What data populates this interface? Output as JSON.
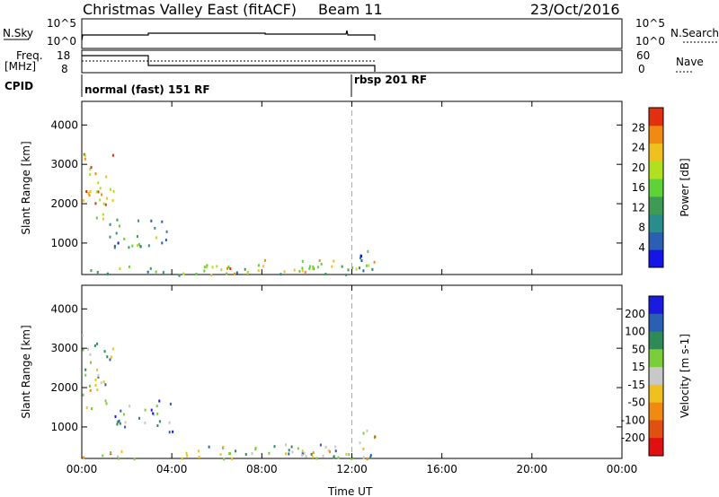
{
  "header": {
    "station": "Christmas Valley East (fitACF)",
    "beam": "Beam 11",
    "date": "23/Oct/2016"
  },
  "panels": {
    "nsky_label": "N.Sky",
    "nsearch_label": "N.Search",
    "nsky_ticks": [
      "10^5",
      "10^0"
    ],
    "freq_label_1": "Freq.",
    "freq_label_2": "[MHz]",
    "freq_ticks": [
      "18",
      "8"
    ],
    "nave_label": "Nave",
    "nave_ticks": [
      "60",
      "0"
    ],
    "cpid_label": "CPID",
    "cpid_segments": [
      {
        "label": "normal (fast) 151 RF",
        "start": 0.0
      },
      {
        "label": "rbsp 201 RF",
        "start": 12.0
      }
    ]
  },
  "chart_data": [
    {
      "type": "heatmap",
      "name": "power",
      "ylabel": "Slant Range [km]",
      "xlabel": "Time UT",
      "x_ticks": [
        "00:00",
        "04:00",
        "08:00",
        "12:00",
        "16:00",
        "20:00",
        "00:00"
      ],
      "xlim": [
        0,
        24
      ],
      "ylim": [
        200,
        4600
      ],
      "y_ticks": [
        1000,
        2000,
        3000,
        4000
      ],
      "colorbar": {
        "label": "Power [dB]",
        "ticks": [
          "4",
          "8",
          "12",
          "16",
          "20",
          "24",
          "28"
        ],
        "colors": [
          "#1515e8",
          "#2a5fb3",
          "#2a8c8c",
          "#3f9a55",
          "#5fd23a",
          "#b0e020",
          "#f0c020",
          "#f08a10",
          "#e03010"
        ]
      },
      "data_end_hour": 13.0,
      "regions": [
        {
          "t0": 0.0,
          "t1": 1.4,
          "r0": 1500,
          "r1": 3400,
          "level": 0.75
        },
        {
          "t0": 1.2,
          "t1": 4.0,
          "r0": 900,
          "r1": 1700,
          "level": 0.35
        },
        {
          "t0": 0.0,
          "t1": 13.0,
          "r0": 200,
          "r1": 450,
          "level": 0.45
        },
        {
          "t0": 5.5,
          "t1": 13.0,
          "r0": 250,
          "r1": 600,
          "level": 0.7
        },
        {
          "t0": 12.3,
          "t1": 13.0,
          "r0": 500,
          "r1": 1100,
          "level": 0.3
        }
      ]
    },
    {
      "type": "heatmap",
      "name": "velocity",
      "ylabel": "Slant Range [km]",
      "xlabel": "Time UT",
      "x_ticks": [
        "00:00",
        "04:00",
        "08:00",
        "12:00",
        "16:00",
        "20:00",
        "00:00"
      ],
      "xlim": [
        0,
        24
      ],
      "ylim": [
        200,
        4600
      ],
      "y_ticks": [
        1000,
        2000,
        3000,
        4000
      ],
      "colorbar": {
        "label": "Velocity [m s-1]",
        "ticks": [
          "200",
          "100",
          "50",
          "15",
          "-15",
          "-50",
          "-100",
          "-200"
        ],
        "colors": [
          "#1a1ae0",
          "#2a5fb3",
          "#2e8b57",
          "#7ccd3a",
          "#c8c8c8",
          "#f0c020",
          "#f08a10",
          "#e05010",
          "#e01010"
        ]
      },
      "data_end_hour": 13.0,
      "regions": [
        {
          "t0": 0.0,
          "t1": 1.4,
          "r0": 1500,
          "r1": 3400,
          "level": 0.45
        },
        {
          "t0": 1.2,
          "t1": 4.0,
          "r0": 900,
          "r1": 1700,
          "level": 0.3
        },
        {
          "t0": 0.0,
          "t1": 13.0,
          "r0": 200,
          "r1": 450,
          "level": 0.55
        },
        {
          "t0": 5.5,
          "t1": 13.0,
          "r0": 250,
          "r1": 600,
          "level": 0.35
        },
        {
          "t0": 12.3,
          "t1": 13.0,
          "r0": 500,
          "r1": 1100,
          "level": 0.6
        }
      ]
    }
  ]
}
